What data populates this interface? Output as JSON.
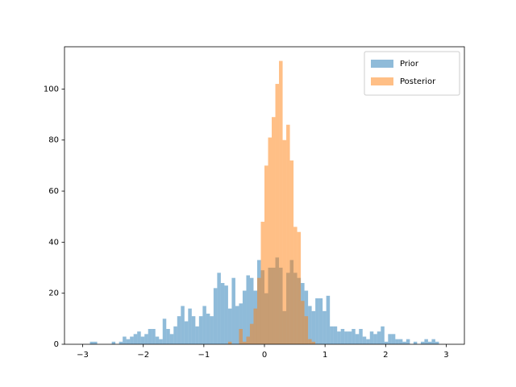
{
  "chart_data": {
    "type": "histogram",
    "xlim": [
      -3.3,
      3.3
    ],
    "ylim": [
      0,
      116.55
    ],
    "xticks": [
      {
        "value": -3,
        "label": "−3"
      },
      {
        "value": -2,
        "label": "−2"
      },
      {
        "value": -1,
        "label": "−1"
      },
      0,
      1,
      2,
      3
    ],
    "yticks": [
      0,
      20,
      40,
      60,
      80,
      100
    ],
    "legend": "upper right",
    "series": [
      {
        "name": "Prior",
        "color": "#1f77b4",
        "bins": [
          -3.0,
          -2.94,
          -2.88,
          -2.82,
          -2.76,
          -2.7,
          -2.64,
          -2.58,
          -2.52,
          -2.46,
          -2.4,
          -2.34,
          -2.28,
          -2.22,
          -2.16,
          -2.1,
          -2.04,
          -1.98,
          -1.92,
          -1.86,
          -1.8,
          -1.74,
          -1.68,
          -1.62,
          -1.56,
          -1.5,
          -1.44,
          -1.38,
          -1.32,
          -1.26,
          -1.2,
          -1.14,
          -1.08,
          -1.02,
          -0.96,
          -0.9,
          -0.84,
          -0.78,
          -0.72,
          -0.66,
          -0.6,
          -0.54,
          -0.48,
          -0.42,
          -0.36,
          -0.3,
          -0.24,
          -0.18,
          -0.12,
          -0.06,
          0,
          0.06,
          0.12,
          0.18,
          0.24,
          0.3,
          0.36,
          0.42,
          0.48,
          0.54,
          0.6,
          0.66,
          0.72,
          0.78,
          0.84,
          0.9,
          0.96,
          1.02,
          1.08,
          1.14,
          1.2,
          1.26,
          1.32,
          1.38,
          1.44,
          1.5,
          1.56,
          1.62,
          1.68,
          1.74,
          1.8,
          1.86,
          1.92,
          1.98,
          2.04,
          2.1,
          2.16,
          2.22,
          2.28,
          2.34,
          2.4,
          2.46,
          2.52,
          2.58,
          2.64,
          2.7,
          2.76,
          2.82,
          2.88,
          2.94,
          3.0
        ],
        "values": [
          0,
          0,
          1,
          1,
          0,
          0,
          0,
          0,
          1,
          0,
          1,
          3,
          2,
          3,
          4,
          5,
          3,
          4,
          6,
          6,
          3,
          2,
          10,
          6,
          4,
          7,
          11,
          15,
          9,
          14,
          11,
          7,
          11,
          15,
          12,
          11,
          22,
          28,
          24,
          23,
          14,
          26,
          15,
          16,
          21,
          27,
          26,
          21,
          33,
          29,
          20,
          30,
          30,
          34,
          30,
          13,
          28,
          33,
          28,
          26,
          24,
          21,
          15,
          13,
          18,
          18,
          13,
          19,
          7,
          7,
          5,
          6,
          5,
          5,
          6,
          4,
          6,
          3,
          2,
          5,
          4,
          5,
          7,
          1,
          4,
          4,
          2,
          2,
          1,
          2,
          0,
          1,
          0,
          1,
          2,
          1,
          2,
          1,
          0,
          0
        ]
      },
      {
        "name": "Posterior",
        "color": "#ff7f0e",
        "bins": [
          -0.6,
          -0.54,
          -0.48,
          -0.42,
          -0.36,
          -0.3,
          -0.24,
          -0.18,
          -0.12,
          -0.06,
          0,
          0.06,
          0.12,
          0.18,
          0.24,
          0.3,
          0.36,
          0.42,
          0.48,
          0.54,
          0.6,
          0.66,
          0.72,
          0.78,
          0.84
        ],
        "values": [
          1,
          0,
          0,
          6,
          1,
          3,
          8,
          14,
          26,
          48,
          70,
          81,
          89,
          102,
          111,
          80,
          86,
          72,
          46,
          44,
          17,
          11,
          2,
          1
        ]
      }
    ]
  }
}
